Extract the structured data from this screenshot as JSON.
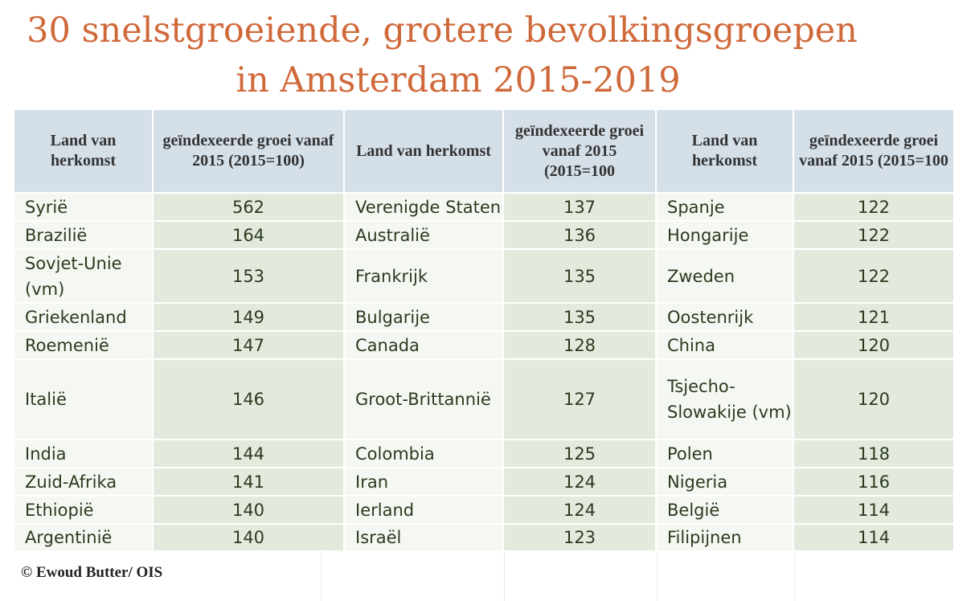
{
  "title": {
    "line1": "30 snelstgroeiende, grotere bevolkingsgroepen",
    "line2": "in Amsterdam 2015-2019"
  },
  "headers": [
    {
      "country": "Land van herkomst",
      "growth": "geïndexeerde groei vanaf 2015 (2015=100)"
    },
    {
      "country": "Land van herkomst",
      "growth": "geïndexeerde groei vanaf 2015 (2015=100"
    },
    {
      "country": "Land van herkomst",
      "growth": "geïndexeerde groei vanaf 2015 (2015=100"
    }
  ],
  "groups": [
    [
      {
        "country": "Syrië",
        "value": "562"
      },
      {
        "country": "Brazilië",
        "value": "164"
      },
      {
        "country": "Sovjet-Unie (vm)",
        "value": "153"
      },
      {
        "country": "Griekenland",
        "value": "149"
      },
      {
        "country": "Roemenië",
        "value": "147"
      },
      {
        "country": "Italië",
        "value": "146"
      },
      {
        "country": "India",
        "value": "144"
      },
      {
        "country": "Zuid-Afrika",
        "value": "141"
      },
      {
        "country": "Ethiopië",
        "value": "140"
      },
      {
        "country": "Argentinië",
        "value": "140"
      }
    ],
    [
      {
        "country": "Verenigde Staten",
        "value": "137"
      },
      {
        "country": "Australië",
        "value": "136"
      },
      {
        "country": "Frankrijk",
        "value": "135"
      },
      {
        "country": "Bulgarije",
        "value": "135"
      },
      {
        "country": "Canada",
        "value": "128"
      },
      {
        "country": "Groot-Brittannië",
        "value": "127"
      },
      {
        "country": "Colombia",
        "value": "125"
      },
      {
        "country": "Iran",
        "value": "124"
      },
      {
        "country": "Ierland",
        "value": "124"
      },
      {
        "country": "Israël",
        "value": "123"
      }
    ],
    [
      {
        "country": "Spanje",
        "value": "122"
      },
      {
        "country": "Hongarije",
        "value": "122"
      },
      {
        "country": "Zweden",
        "value": "122"
      },
      {
        "country": "Oostenrijk",
        "value": "121"
      },
      {
        "country": "China",
        "value": "120"
      },
      {
        "country": "Tsjecho-Slowakije (vm)",
        "value": "120"
      },
      {
        "country": "Polen",
        "value": "118"
      },
      {
        "country": "Nigeria",
        "value": "116"
      },
      {
        "country": "België",
        "value": "114"
      },
      {
        "country": "Filipijnen",
        "value": "114"
      }
    ]
  ],
  "footer": "© Ewoud Butter/ OIS"
}
